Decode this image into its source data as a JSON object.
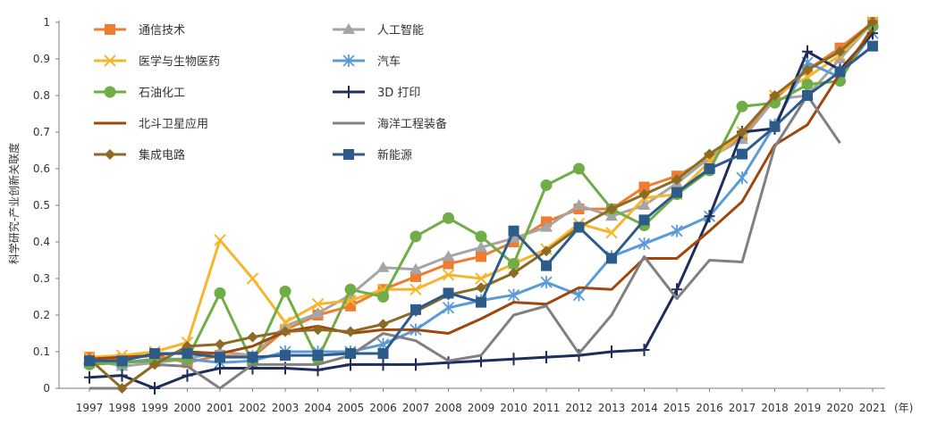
{
  "chart_data": {
    "type": "line",
    "ylabel": "科学研究-产业创新关联度",
    "x_unit": "(年)",
    "ylim": [
      0,
      1
    ],
    "yticks": [
      "0",
      "0.1",
      "0.2",
      "0.3",
      "0.4",
      "0.5",
      "0.6",
      "0.7",
      "0.8",
      "0.9",
      "1"
    ],
    "categories": [
      "1997",
      "1998",
      "1999",
      "2000",
      "2001",
      "2002",
      "2003",
      "2004",
      "2005",
      "2006",
      "2007",
      "2008",
      "2009",
      "2010",
      "2011",
      "2012",
      "2013",
      "2014",
      "2015",
      "2016",
      "2017",
      "2018",
      "2019",
      "2020",
      "2021"
    ],
    "grid": false,
    "legend_position": "top-left",
    "series": [
      {
        "name": "通信技术",
        "color": "#ED7D31",
        "marker": "square",
        "values": [
          0.085,
          0.08,
          0.09,
          0.07,
          0.09,
          0.085,
          0.16,
          0.2,
          0.225,
          0.27,
          0.305,
          0.34,
          0.36,
          0.4,
          0.455,
          0.49,
          0.49,
          0.55,
          0.58,
          0.63,
          0.69,
          0.79,
          0.87,
          0.93,
          1.0
        ]
      },
      {
        "name": "人工智能",
        "color": "#A5A5A5",
        "marker": "triangle",
        "values": [
          0.08,
          0.06,
          0.07,
          0.08,
          0.1,
          0.09,
          0.17,
          0.205,
          0.255,
          0.33,
          0.325,
          0.36,
          0.385,
          0.41,
          0.44,
          0.5,
          0.47,
          0.5,
          0.56,
          0.63,
          0.68,
          0.79,
          0.8,
          0.9,
          1.0
        ]
      },
      {
        "name": "医学与生物医药",
        "color": "#F7B52C",
        "marker": "x",
        "values": [
          0.085,
          0.09,
          0.1,
          0.125,
          0.405,
          0.3,
          0.18,
          0.23,
          0.24,
          0.27,
          0.27,
          0.31,
          0.3,
          0.34,
          0.38,
          0.45,
          0.425,
          0.52,
          0.53,
          0.62,
          0.7,
          0.8,
          0.85,
          0.91,
          1.0
        ]
      },
      {
        "name": "汽车",
        "color": "#5B9BD5",
        "marker": "star",
        "values": [
          0.07,
          0.07,
          0.08,
          0.08,
          0.07,
          0.075,
          0.1,
          0.1,
          0.1,
          0.12,
          0.16,
          0.22,
          0.24,
          0.255,
          0.29,
          0.255,
          0.36,
          0.395,
          0.43,
          0.47,
          0.575,
          0.72,
          0.89,
          0.85,
          0.97
        ]
      },
      {
        "name": "石油化工",
        "color": "#70AD47",
        "marker": "circle",
        "values": [
          0.065,
          0.07,
          0.075,
          0.08,
          0.26,
          0.07,
          0.265,
          0.08,
          0.27,
          0.25,
          0.415,
          0.465,
          0.415,
          0.34,
          0.555,
          0.6,
          0.49,
          0.445,
          0.53,
          0.595,
          0.77,
          0.78,
          0.83,
          0.84,
          0.99
        ]
      },
      {
        "name": "3D 打印",
        "color": "#1F2D5C",
        "marker": "plus",
        "values": [
          0.03,
          0.035,
          0.0,
          0.035,
          0.055,
          0.055,
          0.055,
          0.05,
          0.065,
          0.065,
          0.065,
          0.07,
          0.075,
          0.08,
          0.085,
          0.09,
          0.1,
          0.105,
          0.27,
          0.47,
          0.7,
          0.71,
          0.92,
          0.87,
          0.97
        ]
      },
      {
        "name": "北斗卫星应用",
        "color": "#9E480E",
        "marker": "none",
        "values": [
          0.08,
          0.085,
          0.09,
          0.1,
          0.095,
          0.115,
          0.155,
          0.17,
          0.15,
          0.16,
          0.16,
          0.15,
          0.19,
          0.235,
          0.23,
          0.275,
          0.27,
          0.355,
          0.355,
          0.43,
          0.51,
          0.665,
          0.72,
          0.86,
          0.98
        ]
      },
      {
        "name": "海洋工程装备",
        "color": "#808080",
        "marker": "none",
        "values": [
          0.0,
          0.0,
          0.065,
          0.06,
          0.0,
          0.065,
          0.065,
          0.065,
          0.09,
          0.15,
          0.13,
          0.075,
          0.09,
          0.2,
          0.225,
          0.095,
          0.2,
          0.36,
          0.245,
          0.35,
          0.345,
          0.66,
          0.8,
          0.67,
          null
        ]
      },
      {
        "name": "集成电路",
        "color": "#8C6B24",
        "marker": "diamond",
        "values": [
          0.08,
          0.0,
          0.065,
          0.115,
          0.12,
          0.14,
          0.155,
          0.16,
          0.155,
          0.175,
          0.21,
          0.255,
          0.275,
          0.315,
          0.375,
          0.44,
          0.49,
          0.53,
          0.57,
          0.64,
          0.7,
          0.8,
          0.87,
          0.92,
          1.0
        ]
      },
      {
        "name": "新能源",
        "color": "#2E5C8A",
        "marker": "square",
        "values": [
          0.075,
          0.075,
          0.095,
          0.095,
          0.085,
          0.085,
          0.09,
          0.09,
          0.095,
          0.095,
          0.215,
          0.26,
          0.235,
          0.43,
          0.335,
          0.44,
          0.355,
          0.46,
          0.535,
          0.6,
          0.64,
          0.715,
          0.8,
          0.865,
          0.935
        ]
      }
    ]
  }
}
